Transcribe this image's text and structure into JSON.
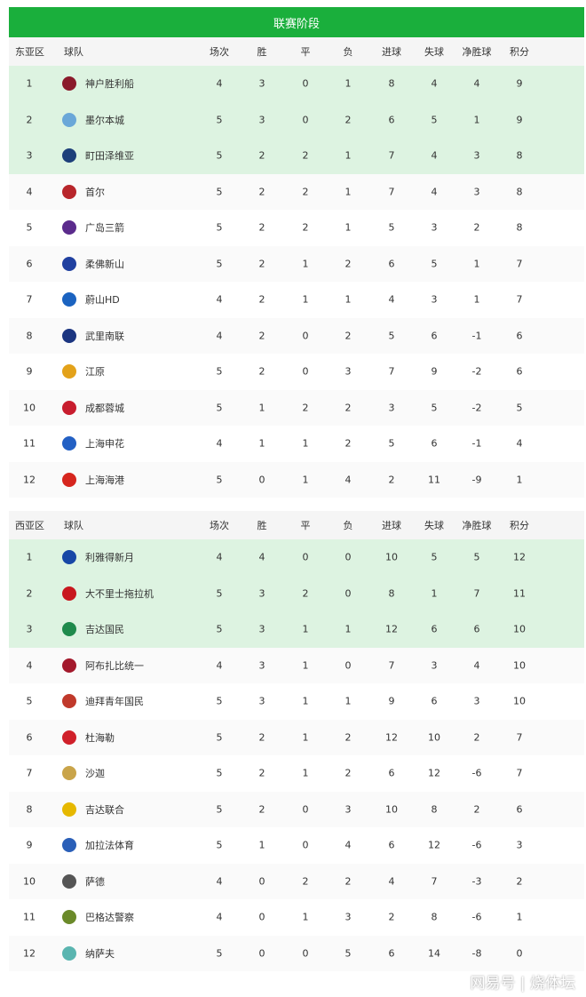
{
  "title": "联赛阶段",
  "columns": [
    "球队",
    "场次",
    "胜",
    "平",
    "负",
    "进球",
    "失球",
    "净胜球",
    "积分"
  ],
  "tables": [
    {
      "zone": "东亚区",
      "rows": [
        {
          "rank": "1",
          "team": "神户胜利船",
          "logo_color": "#8a1a2b",
          "stats": [
            "4",
            "3",
            "0",
            "1",
            "8",
            "4",
            "4",
            "9"
          ]
        },
        {
          "rank": "2",
          "team": "墨尔本城",
          "logo_color": "#6aa7d8",
          "stats": [
            "5",
            "3",
            "0",
            "2",
            "6",
            "5",
            "1",
            "9"
          ]
        },
        {
          "rank": "3",
          "team": "町田泽维亚",
          "logo_color": "#1d3f7a",
          "stats": [
            "5",
            "2",
            "2",
            "1",
            "7",
            "4",
            "3",
            "8"
          ]
        },
        {
          "rank": "4",
          "team": "首尔",
          "logo_color": "#b8262b",
          "stats": [
            "5",
            "2",
            "2",
            "1",
            "7",
            "4",
            "3",
            "8"
          ]
        },
        {
          "rank": "5",
          "team": "广岛三箭",
          "logo_color": "#5b2b8c",
          "stats": [
            "5",
            "2",
            "2",
            "1",
            "5",
            "3",
            "2",
            "8"
          ]
        },
        {
          "rank": "6",
          "team": "柔佛新山",
          "logo_color": "#2040a0",
          "stats": [
            "5",
            "2",
            "1",
            "2",
            "6",
            "5",
            "1",
            "7"
          ]
        },
        {
          "rank": "7",
          "team": "蔚山HD",
          "logo_color": "#1b63c0",
          "stats": [
            "4",
            "2",
            "1",
            "1",
            "4",
            "3",
            "1",
            "7"
          ]
        },
        {
          "rank": "8",
          "team": "武里南联",
          "logo_color": "#1b3580",
          "stats": [
            "4",
            "2",
            "0",
            "2",
            "5",
            "6",
            "-1",
            "6"
          ]
        },
        {
          "rank": "9",
          "team": "江原",
          "logo_color": "#e3a21a",
          "stats": [
            "5",
            "2",
            "0",
            "3",
            "7",
            "9",
            "-2",
            "6"
          ]
        },
        {
          "rank": "10",
          "team": "成都蓉城",
          "logo_color": "#c81d2e",
          "stats": [
            "5",
            "1",
            "2",
            "2",
            "3",
            "5",
            "-2",
            "5"
          ]
        },
        {
          "rank": "11",
          "team": "上海申花",
          "logo_color": "#2360c4",
          "stats": [
            "4",
            "1",
            "1",
            "2",
            "5",
            "6",
            "-1",
            "4"
          ]
        },
        {
          "rank": "12",
          "team": "上海海港",
          "logo_color": "#d6261e",
          "stats": [
            "5",
            "0",
            "1",
            "4",
            "2",
            "11",
            "-9",
            "1"
          ]
        }
      ]
    },
    {
      "zone": "西亚区",
      "rows": [
        {
          "rank": "1",
          "team": "利雅得新月",
          "logo_color": "#1747a6",
          "stats": [
            "4",
            "4",
            "0",
            "0",
            "10",
            "5",
            "5",
            "12"
          ]
        },
        {
          "rank": "2",
          "team": "大不里士拖拉机",
          "logo_color": "#c8171e",
          "stats": [
            "5",
            "3",
            "2",
            "0",
            "8",
            "1",
            "7",
            "11"
          ]
        },
        {
          "rank": "3",
          "team": "吉达国民",
          "logo_color": "#1f8a4c",
          "stats": [
            "5",
            "3",
            "1",
            "1",
            "12",
            "6",
            "6",
            "10"
          ]
        },
        {
          "rank": "4",
          "team": "阿布扎比统一",
          "logo_color": "#a3192c",
          "stats": [
            "4",
            "3",
            "1",
            "0",
            "7",
            "3",
            "4",
            "10"
          ]
        },
        {
          "rank": "5",
          "team": "迪拜青年国民",
          "logo_color": "#c0392b",
          "stats": [
            "5",
            "3",
            "1",
            "1",
            "9",
            "6",
            "3",
            "10"
          ]
        },
        {
          "rank": "6",
          "team": "杜海勒",
          "logo_color": "#d0202a",
          "stats": [
            "5",
            "2",
            "1",
            "2",
            "12",
            "10",
            "2",
            "7"
          ]
        },
        {
          "rank": "7",
          "team": "沙迦",
          "logo_color": "#c9a44a",
          "stats": [
            "5",
            "2",
            "1",
            "2",
            "6",
            "12",
            "-6",
            "7"
          ]
        },
        {
          "rank": "8",
          "team": "吉达联合",
          "logo_color": "#e6b800",
          "stats": [
            "5",
            "2",
            "0",
            "3",
            "10",
            "8",
            "2",
            "6"
          ]
        },
        {
          "rank": "9",
          "team": "加拉法体育",
          "logo_color": "#2a5fb8",
          "stats": [
            "5",
            "1",
            "0",
            "4",
            "6",
            "12",
            "-6",
            "3"
          ]
        },
        {
          "rank": "10",
          "team": "萨德",
          "logo_color": "#555555",
          "stats": [
            "4",
            "0",
            "2",
            "2",
            "4",
            "7",
            "-3",
            "2"
          ]
        },
        {
          "rank": "11",
          "team": "巴格达警察",
          "logo_color": "#6b8a2a",
          "stats": [
            "4",
            "0",
            "1",
            "3",
            "2",
            "8",
            "-6",
            "1"
          ]
        },
        {
          "rank": "12",
          "team": "纳萨夫",
          "logo_color": "#5ab5b0",
          "stats": [
            "5",
            "0",
            "0",
            "5",
            "6",
            "14",
            "-8",
            "0"
          ]
        }
      ]
    }
  ],
  "watermark": "网易号 | 烧体坛"
}
